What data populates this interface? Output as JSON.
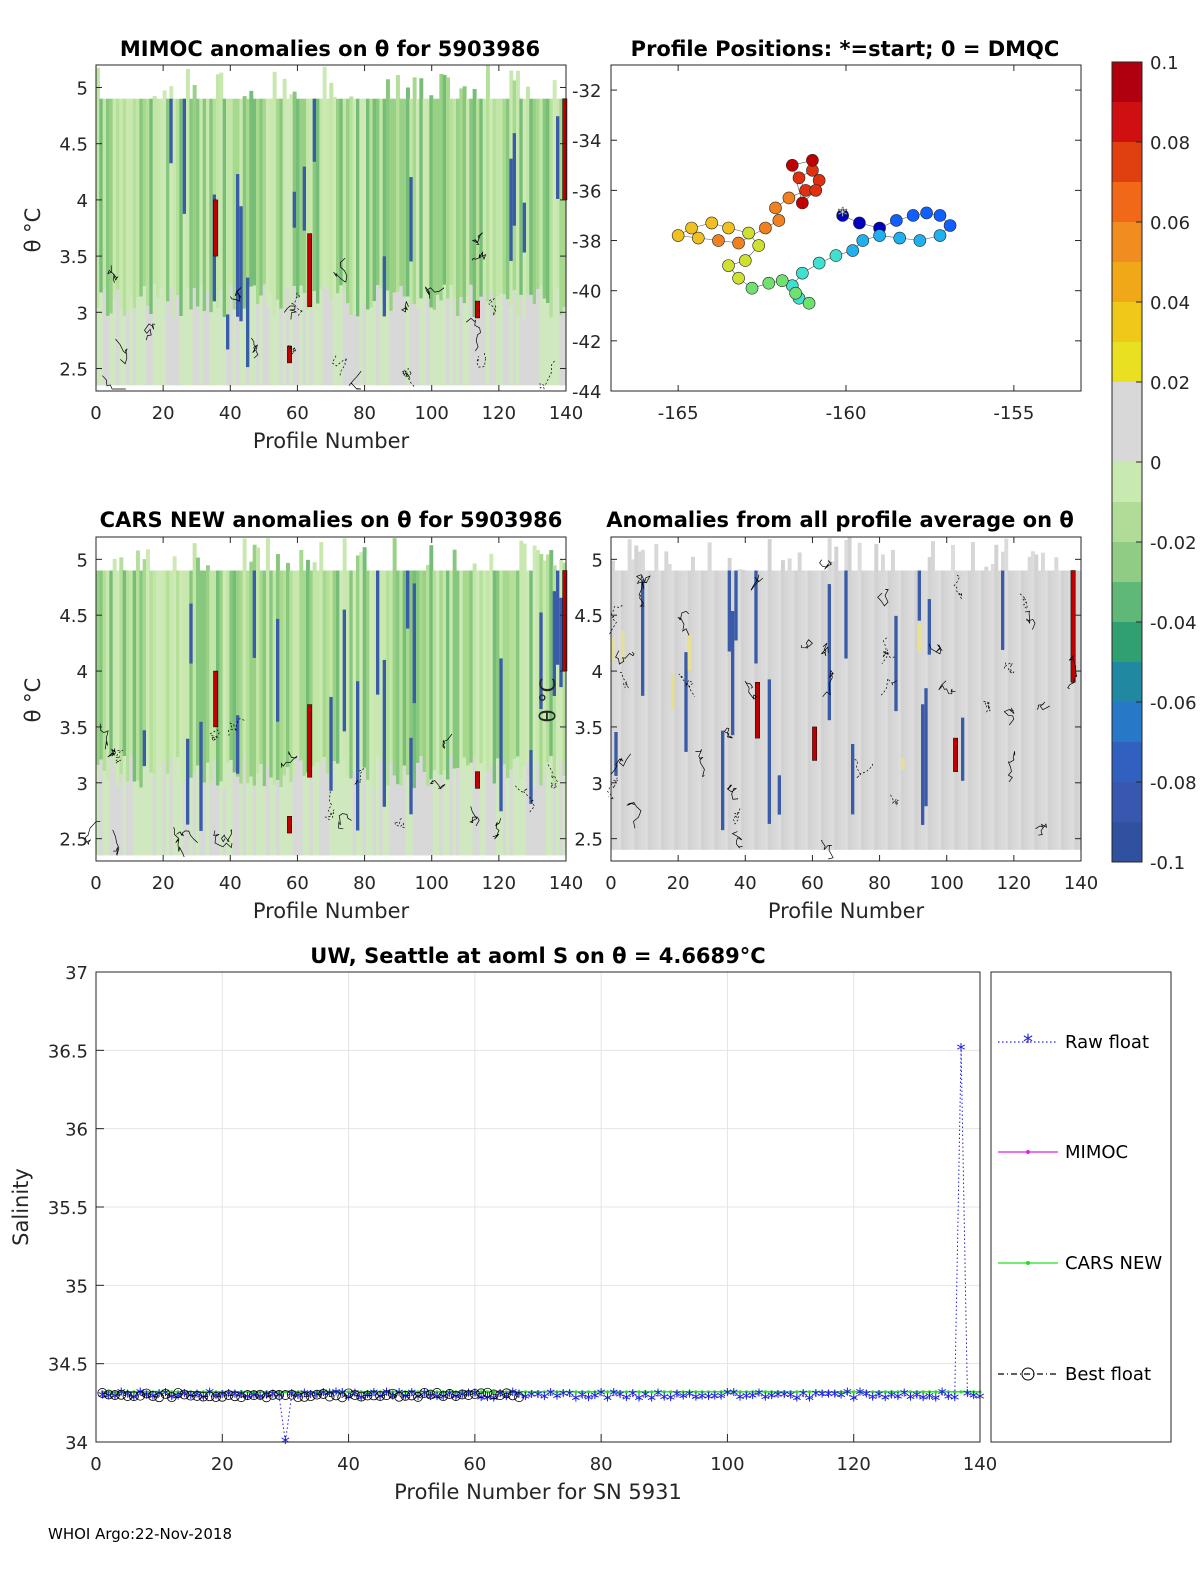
{
  "footer": "WHOI Argo:22-Nov-2018",
  "colorbar": {
    "ticks": [
      "0.1",
      "0.08",
      "0.06",
      "0.04",
      "0.02",
      "0",
      "-0.02",
      "-0.04",
      "-0.06",
      "-0.08",
      "-0.1"
    ],
    "colors": [
      "#c00000",
      "#e03a10",
      "#f07820",
      "#f0b010",
      "#e8d818",
      "#d8d8d8",
      "#c0e8a0",
      "#80cc80",
      "#30a870",
      "#2878c8",
      "#3050a0"
    ]
  },
  "chart_data": [
    {
      "id": "mimoc",
      "type": "heatmap",
      "title": "MIMOC anomalies on θ  for 5903986",
      "xlabel": "Profile Number",
      "ylabel": "θ °C",
      "xlim": [
        0,
        140
      ],
      "ylim": [
        2.3,
        5.2
      ],
      "xticks": [
        0,
        20,
        40,
        60,
        80,
        100,
        120,
        140
      ],
      "yticks": [
        2.5,
        3,
        3.5,
        4,
        4.5,
        5
      ]
    },
    {
      "id": "positions",
      "type": "scatter",
      "title": "Profile Positions: *=start; 0 = DMQC",
      "xlim": [
        -167,
        -153
      ],
      "ylim": [
        -44,
        -31
      ],
      "xticks": [
        -165,
        -160,
        -155
      ],
      "yticks": [
        -32,
        -34,
        -36,
        -38,
        -40,
        -42,
        -44
      ],
      "track": [
        [
          -160.1,
          -37.0
        ],
        [
          -159.6,
          -37.3
        ],
        [
          -159.0,
          -37.5
        ],
        [
          -158.5,
          -37.2
        ],
        [
          -158.0,
          -37.0
        ],
        [
          -157.6,
          -36.9
        ],
        [
          -157.2,
          -37.0
        ],
        [
          -156.9,
          -37.4
        ],
        [
          -157.2,
          -37.8
        ],
        [
          -157.8,
          -38.0
        ],
        [
          -158.4,
          -37.9
        ],
        [
          -159.0,
          -37.8
        ],
        [
          -159.5,
          -38.0
        ],
        [
          -159.8,
          -38.4
        ],
        [
          -160.3,
          -38.6
        ],
        [
          -160.8,
          -38.9
        ],
        [
          -161.3,
          -39.3
        ],
        [
          -161.6,
          -39.8
        ],
        [
          -161.4,
          -40.3
        ],
        [
          -161.1,
          -40.5
        ],
        [
          -161.5,
          -40.1
        ],
        [
          -161.9,
          -39.6
        ],
        [
          -162.3,
          -39.7
        ],
        [
          -162.8,
          -39.9
        ],
        [
          -163.2,
          -39.5
        ],
        [
          -163.5,
          -39.0
        ],
        [
          -163.0,
          -38.8
        ],
        [
          -162.6,
          -38.2
        ],
        [
          -162.9,
          -37.7
        ],
        [
          -163.5,
          -37.5
        ],
        [
          -164.0,
          -37.3
        ],
        [
          -164.6,
          -37.5
        ],
        [
          -165.0,
          -37.8
        ],
        [
          -164.4,
          -37.9
        ],
        [
          -163.8,
          -38.0
        ],
        [
          -163.2,
          -38.1
        ],
        [
          -162.4,
          -37.5
        ],
        [
          -162.0,
          -37.2
        ],
        [
          -162.1,
          -36.7
        ],
        [
          -161.7,
          -36.3
        ],
        [
          -161.2,
          -36.0
        ],
        [
          -161.4,
          -35.5
        ],
        [
          -161.0,
          -35.2
        ],
        [
          -160.8,
          -35.6
        ],
        [
          -160.9,
          -36.0
        ],
        [
          -161.3,
          -36.5
        ],
        [
          -161.6,
          -35.0
        ],
        [
          -161.0,
          -34.8
        ]
      ]
    },
    {
      "id": "cars",
      "type": "heatmap",
      "title": "CARS NEW anomalies on θ for 5903986",
      "xlabel": "Profile Number",
      "ylabel": "θ °C",
      "xlim": [
        0,
        140
      ],
      "ylim": [
        2.3,
        5.2
      ],
      "xticks": [
        0,
        20,
        40,
        60,
        80,
        100,
        120,
        140
      ],
      "yticks": [
        2.5,
        3,
        3.5,
        4,
        4.5,
        5
      ]
    },
    {
      "id": "avg",
      "type": "heatmap",
      "title": "Anomalies from all profile average on θ",
      "xlabel": "Profile Number",
      "ylabel": "θ °C",
      "xlim": [
        0,
        140
      ],
      "ylim": [
        2.3,
        5.2
      ],
      "xticks": [
        0,
        20,
        40,
        60,
        80,
        100,
        120,
        140
      ],
      "yticks": [
        2.5,
        3,
        3.5,
        4,
        4.5,
        5
      ]
    },
    {
      "id": "salinity",
      "type": "line",
      "title": "UW, Seattle at aoml S on θ = 4.6689°C",
      "xlabel": "Profile Number for SN 5931",
      "ylabel": "Salinity",
      "xlim": [
        0,
        140
      ],
      "ylim": [
        34,
        37
      ],
      "xticks": [
        0,
        20,
        40,
        60,
        80,
        100,
        120,
        140
      ],
      "yticks": [
        34,
        34.5,
        35,
        35.5,
        36,
        36.5,
        37
      ],
      "grid": true,
      "legend": "outside-right",
      "series": [
        {
          "name": "Raw float",
          "color": "#2020e0",
          "baseline": 34.29,
          "spikes": [
            [
              30,
              34.0
            ],
            [
              137,
              36.51
            ]
          ]
        },
        {
          "name": "MIMOC",
          "color": "#e020e0",
          "value": 34.32
        },
        {
          "name": "CARS NEW",
          "color": "#20e020",
          "value": 34.32
        },
        {
          "name": "Best float",
          "color": "#000000",
          "value": 34.3,
          "last_x": 67
        }
      ]
    }
  ]
}
